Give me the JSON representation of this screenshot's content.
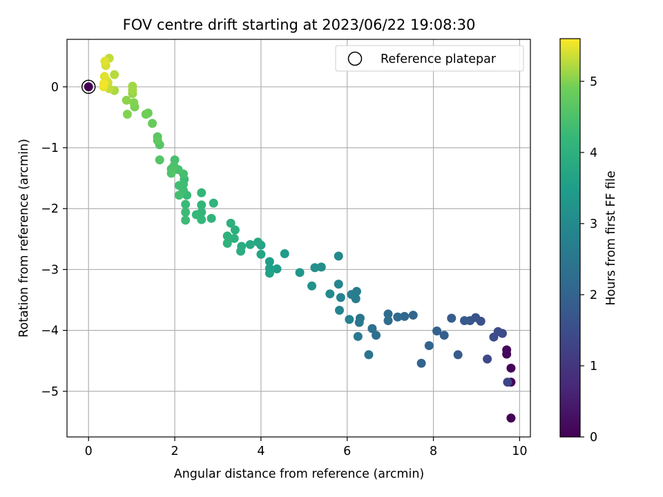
{
  "chart_data": {
    "type": "scatter",
    "title": "FOV centre drift starting at 2023/06/22 19:08:30",
    "xlabel": "Angular distance from reference (arcmin)",
    "ylabel": "Rotation from reference (arcmin)",
    "xlim": [
      -0.5,
      10.25
    ],
    "ylim": [
      -5.75,
      0.78
    ],
    "xticks": [
      0,
      2,
      4,
      6,
      8,
      10
    ],
    "yticks": [
      0,
      -1,
      -2,
      -3,
      -4,
      -5
    ],
    "grid": true,
    "legend": {
      "label": "Reference platepar",
      "placement": "top-right"
    },
    "reference_point": {
      "x": 0,
      "y": 0
    },
    "colorbar": {
      "label": "Hours from first FF file",
      "range": [
        0,
        5.6
      ],
      "ticks": [
        0,
        1,
        2,
        3,
        4,
        5
      ],
      "colormap": "viridis"
    },
    "points": [
      {
        "x": 9.8,
        "y": -5.44,
        "c": 0.0
      },
      {
        "x": 9.8,
        "y": -4.85,
        "c": 0.05
      },
      {
        "x": 9.8,
        "y": -4.62,
        "c": 0.08
      },
      {
        "x": 9.7,
        "y": -4.39,
        "c": 0.12
      },
      {
        "x": 9.7,
        "y": -4.32,
        "c": 0.15
      },
      {
        "x": 9.72,
        "y": -4.85,
        "c": 1.3
      },
      {
        "x": 9.25,
        "y": -4.47,
        "c": 1.4
      },
      {
        "x": 9.6,
        "y": -4.05,
        "c": 1.45
      },
      {
        "x": 9.5,
        "y": -4.02,
        "c": 1.5
      },
      {
        "x": 9.4,
        "y": -4.11,
        "c": 1.5
      },
      {
        "x": 9.1,
        "y": -3.85,
        "c": 1.6
      },
      {
        "x": 8.98,
        "y": -3.79,
        "c": 1.65
      },
      {
        "x": 8.85,
        "y": -3.84,
        "c": 1.7
      },
      {
        "x": 8.72,
        "y": -3.84,
        "c": 1.75
      },
      {
        "x": 8.57,
        "y": -4.4,
        "c": 1.8
      },
      {
        "x": 8.42,
        "y": -3.8,
        "c": 1.85
      },
      {
        "x": 8.25,
        "y": -4.08,
        "c": 1.9
      },
      {
        "x": 8.08,
        "y": -4.01,
        "c": 1.95
      },
      {
        "x": 7.9,
        "y": -4.25,
        "c": 2.0
      },
      {
        "x": 7.72,
        "y": -4.54,
        "c": 2.0
      },
      {
        "x": 7.53,
        "y": -3.75,
        "c": 2.05
      },
      {
        "x": 7.33,
        "y": -3.77,
        "c": 2.1
      },
      {
        "x": 7.17,
        "y": -3.78,
        "c": 2.15
      },
      {
        "x": 6.95,
        "y": -3.73,
        "c": 2.2
      },
      {
        "x": 6.95,
        "y": -3.84,
        "c": 2.25
      },
      {
        "x": 6.67,
        "y": -4.08,
        "c": 2.3
      },
      {
        "x": 6.58,
        "y": -3.97,
        "c": 2.35
      },
      {
        "x": 6.5,
        "y": -4.4,
        "c": 2.4
      },
      {
        "x": 6.3,
        "y": -3.8,
        "c": 2.45
      },
      {
        "x": 6.28,
        "y": -3.87,
        "c": 2.5
      },
      {
        "x": 6.25,
        "y": -4.1,
        "c": 2.55
      },
      {
        "x": 6.22,
        "y": -3.36,
        "c": 2.6
      },
      {
        "x": 6.2,
        "y": -3.48,
        "c": 2.65
      },
      {
        "x": 6.1,
        "y": -3.41,
        "c": 2.7
      },
      {
        "x": 6.05,
        "y": -3.82,
        "c": 2.75
      },
      {
        "x": 5.85,
        "y": -3.46,
        "c": 2.8
      },
      {
        "x": 5.82,
        "y": -3.67,
        "c": 2.85
      },
      {
        "x": 5.8,
        "y": -3.24,
        "c": 2.9
      },
      {
        "x": 5.8,
        "y": -2.78,
        "c": 2.95
      },
      {
        "x": 5.6,
        "y": -3.4,
        "c": 3.0
      },
      {
        "x": 5.4,
        "y": -2.96,
        "c": 3.1
      },
      {
        "x": 5.25,
        "y": -2.97,
        "c": 3.15
      },
      {
        "x": 5.18,
        "y": -3.27,
        "c": 3.2
      },
      {
        "x": 4.9,
        "y": -3.05,
        "c": 3.3
      },
      {
        "x": 4.55,
        "y": -2.74,
        "c": 3.4
      },
      {
        "x": 4.37,
        "y": -2.99,
        "c": 3.45
      },
      {
        "x": 4.2,
        "y": -2.87,
        "c": 3.5
      },
      {
        "x": 4.2,
        "y": -2.98,
        "c": 3.55
      },
      {
        "x": 4.2,
        "y": -3.06,
        "c": 3.6
      },
      {
        "x": 4.0,
        "y": -2.6,
        "c": 3.65
      },
      {
        "x": 4.0,
        "y": -2.75,
        "c": 3.7
      },
      {
        "x": 3.93,
        "y": -2.55,
        "c": 3.75
      },
      {
        "x": 3.75,
        "y": -2.59,
        "c": 3.8
      },
      {
        "x": 3.55,
        "y": -2.62,
        "c": 3.85
      },
      {
        "x": 3.53,
        "y": -2.7,
        "c": 3.9
      },
      {
        "x": 3.4,
        "y": -2.35,
        "c": 3.95
      },
      {
        "x": 3.38,
        "y": -2.49,
        "c": 4.0
      },
      {
        "x": 3.3,
        "y": -2.24,
        "c": 4.0
      },
      {
        "x": 3.22,
        "y": -2.45,
        "c": 4.05
      },
      {
        "x": 3.22,
        "y": -2.57,
        "c": 4.05
      },
      {
        "x": 2.9,
        "y": -1.91,
        "c": 4.1
      },
      {
        "x": 2.85,
        "y": -2.16,
        "c": 4.1
      },
      {
        "x": 2.62,
        "y": -1.74,
        "c": 4.15
      },
      {
        "x": 2.62,
        "y": -1.94,
        "c": 4.15
      },
      {
        "x": 2.62,
        "y": -2.06,
        "c": 4.15
      },
      {
        "x": 2.62,
        "y": -2.18,
        "c": 4.2
      },
      {
        "x": 2.5,
        "y": -2.1,
        "c": 4.2
      },
      {
        "x": 2.28,
        "y": -1.78,
        "c": 4.25
      },
      {
        "x": 2.25,
        "y": -1.93,
        "c": 4.25
      },
      {
        "x": 2.25,
        "y": -2.06,
        "c": 4.3
      },
      {
        "x": 2.25,
        "y": -2.19,
        "c": 4.3
      },
      {
        "x": 2.22,
        "y": -1.52,
        "c": 4.3
      },
      {
        "x": 2.2,
        "y": -1.6,
        "c": 4.35
      },
      {
        "x": 2.2,
        "y": -1.7,
        "c": 4.35
      },
      {
        "x": 2.1,
        "y": -1.62,
        "c": 4.35
      },
      {
        "x": 2.1,
        "y": -1.78,
        "c": 4.4
      },
      {
        "x": 2.2,
        "y": -1.43,
        "c": 4.4
      },
      {
        "x": 2.08,
        "y": -1.36,
        "c": 4.45
      },
      {
        "x": 2.0,
        "y": -1.2,
        "c": 4.45
      },
      {
        "x": 1.98,
        "y": -1.3,
        "c": 4.5
      },
      {
        "x": 1.92,
        "y": -1.35,
        "c": 4.5
      },
      {
        "x": 1.92,
        "y": -1.42,
        "c": 4.55
      },
      {
        "x": 1.65,
        "y": -0.95,
        "c": 4.6
      },
      {
        "x": 1.65,
        "y": -1.2,
        "c": 4.6
      },
      {
        "x": 1.6,
        "y": -0.82,
        "c": 4.65
      },
      {
        "x": 1.6,
        "y": -0.88,
        "c": 4.7
      },
      {
        "x": 1.48,
        "y": -0.6,
        "c": 4.8
      },
      {
        "x": 1.38,
        "y": -0.43,
        "c": 4.85
      },
      {
        "x": 1.33,
        "y": -0.45,
        "c": 4.9
      },
      {
        "x": 1.07,
        "y": -0.33,
        "c": 4.95
      },
      {
        "x": 1.05,
        "y": -0.26,
        "c": 5.0
      },
      {
        "x": 0.9,
        "y": -0.45,
        "c": 5.0
      },
      {
        "x": 0.88,
        "y": -0.22,
        "c": 5.05
      },
      {
        "x": 1.02,
        "y": -0.11,
        "c": 5.1
      },
      {
        "x": 1.02,
        "y": -0.05,
        "c": 5.15
      },
      {
        "x": 1.02,
        "y": 0.01,
        "c": 5.15
      },
      {
        "x": 0.6,
        "y": -0.06,
        "c": 5.2
      },
      {
        "x": 0.6,
        "y": 0.2,
        "c": 5.25
      },
      {
        "x": 0.48,
        "y": -0.03,
        "c": 5.3
      },
      {
        "x": 0.48,
        "y": 0.47,
        "c": 5.3
      },
      {
        "x": 0.45,
        "y": 0.07,
        "c": 5.35
      },
      {
        "x": 0.42,
        "y": 0.1,
        "c": 5.4
      },
      {
        "x": 0.4,
        "y": 0.35,
        "c": 5.4
      },
      {
        "x": 0.38,
        "y": 0.42,
        "c": 5.45
      },
      {
        "x": 0.37,
        "y": 0.17,
        "c": 5.45
      },
      {
        "x": 0.35,
        "y": 0.0,
        "c": 5.5
      },
      {
        "x": 0.35,
        "y": 0.05,
        "c": 5.55
      },
      {
        "x": 0.0,
        "y": 0.0,
        "c": 0.0
      }
    ]
  }
}
